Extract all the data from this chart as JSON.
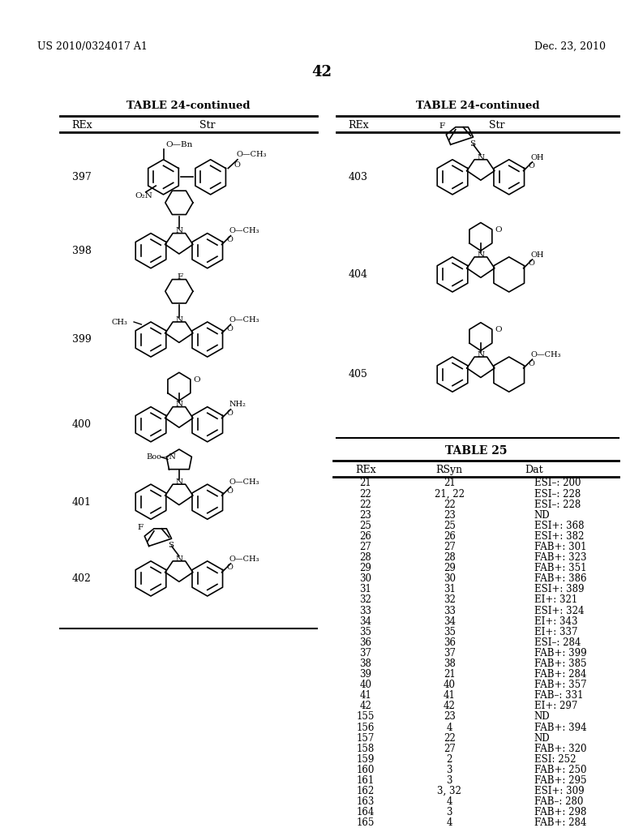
{
  "page_header_left": "US 2010/0324017 A1",
  "page_header_right": "Dec. 23, 2010",
  "page_number": "42",
  "table24_title": "TABLE 24-continued",
  "table25_title": "TABLE 25",
  "table24_col1": "REx",
  "table24_col2": "Str",
  "table25_col1": "REx",
  "table25_col2": "RSyn",
  "table25_col3": "Dat",
  "table25_data": [
    [
      "21",
      "21",
      "ESI–: 200"
    ],
    [
      "22",
      "21, 22",
      "ESI–: 228"
    ],
    [
      "22",
      "22",
      "ESI–: 228"
    ],
    [
      "23",
      "23",
      "ND"
    ],
    [
      "25",
      "25",
      "ESI+: 368"
    ],
    [
      "26",
      "26",
      "ESI+: 382"
    ],
    [
      "27",
      "27",
      "FAB+: 301"
    ],
    [
      "28",
      "28",
      "FAB+: 323"
    ],
    [
      "29",
      "29",
      "FAB+: 351"
    ],
    [
      "30",
      "30",
      "FAB+: 386"
    ],
    [
      "31",
      "31",
      "ESI+: 389"
    ],
    [
      "32",
      "32",
      "EI+: 321"
    ],
    [
      "33",
      "33",
      "ESI+: 324"
    ],
    [
      "34",
      "34",
      "EI+: 343"
    ],
    [
      "35",
      "35",
      "EI+: 337"
    ],
    [
      "36",
      "36",
      "ESI–: 284"
    ],
    [
      "37",
      "37",
      "FAB+: 399"
    ],
    [
      "38",
      "38",
      "FAB+: 385"
    ],
    [
      "39",
      "21",
      "FAB+: 284"
    ],
    [
      "40",
      "40",
      "FAB+: 357"
    ],
    [
      "41",
      "41",
      "FAB–: 331"
    ],
    [
      "42",
      "42",
      "EI+: 297"
    ],
    [
      "155",
      "23",
      "ND"
    ],
    [
      "156",
      "4",
      "FAB+: 394"
    ],
    [
      "157",
      "22",
      "ND"
    ],
    [
      "158",
      "27",
      "FAB+: 320"
    ],
    [
      "159",
      "2",
      "ESI: 252"
    ],
    [
      "160",
      "3",
      "FAB+: 250"
    ],
    [
      "161",
      "3",
      "FAB+: 295"
    ],
    [
      "162",
      "3, 32",
      "ESI+: 309"
    ],
    [
      "163",
      "4",
      "FAB–: 280"
    ],
    [
      "164",
      "3",
      "FAB+: 298"
    ],
    [
      "165",
      "4",
      "FAB+: 284"
    ]
  ],
  "background_color": "#ffffff"
}
